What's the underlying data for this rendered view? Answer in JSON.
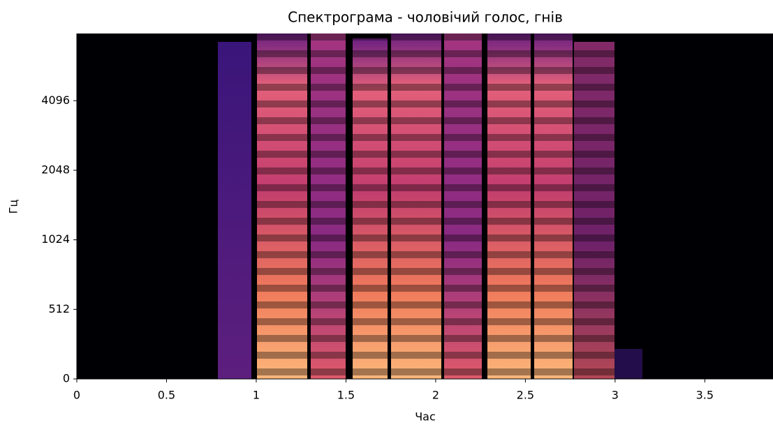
{
  "chart_data": {
    "type": "spectrogram",
    "title": "Спектрограма - чоловічий голос, гнів",
    "xlabel": "Час",
    "ylabel": "Гц",
    "xlim": [
      0,
      3.88
    ],
    "xticks": [
      0,
      0.5,
      1,
      1.5,
      2,
      2.5,
      3,
      3.5
    ],
    "ylim": [
      0,
      8000
    ],
    "yticks": [
      0,
      512,
      1024,
      2048,
      4096
    ],
    "yscale": "symlog",
    "linthresh": 512,
    "colormap": "magma"
  }
}
